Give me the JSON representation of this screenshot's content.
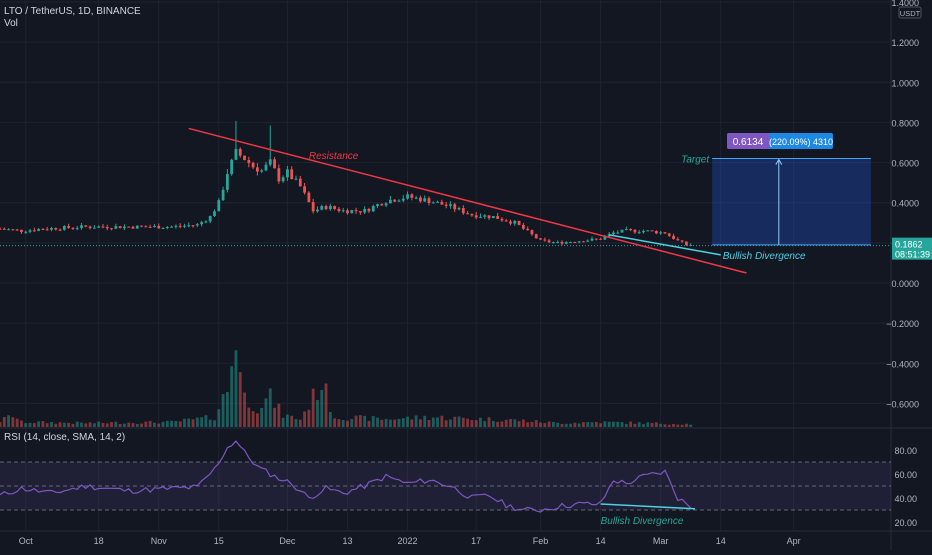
{
  "header": {
    "symbol_line": "LTO / TetherUS, 1D, BINANCE",
    "volume_label": "Vol",
    "rsi_label": "RSI (14, close, SMA, 14, 2)"
  },
  "price_scale": {
    "currency": "USDT",
    "ticks": [
      "1.4000",
      "1.2000",
      "1.0000",
      "0.8000",
      "0.6000",
      "0.4000",
      "0.2000",
      "0.0000",
      "−0.2000",
      "−0.4000",
      "−0.6000"
    ],
    "tick_values": [
      1.4,
      1.2,
      1.0,
      0.8,
      0.6,
      0.4,
      0.2,
      0.0,
      -0.2,
      -0.4,
      -0.6
    ],
    "last_price_label": "0.1862",
    "countdown_label": "08:51:39",
    "last_price": 0.1862
  },
  "rsi_scale": {
    "ticks": [
      "80.00",
      "60.00",
      "40.00",
      "20.00"
    ],
    "tick_values": [
      80,
      60,
      40,
      20
    ],
    "levels": [
      70,
      50,
      30
    ]
  },
  "time_axis": {
    "labels": [
      "Oct",
      "18",
      "Nov",
      "15",
      "Dec",
      "13",
      "2022",
      "17",
      "Feb",
      "14",
      "Mar",
      "14",
      "Apr"
    ],
    "label_days": [
      6,
      23,
      37,
      51,
      67,
      81,
      95,
      111,
      126,
      140,
      154,
      168,
      185
    ]
  },
  "annotations": {
    "resistance_label": "Resistance",
    "target_label": "Target",
    "bullish_divergence_label": "Bullish Divergence",
    "rsi_divergence_label": "Bullish Divergence",
    "target_price_label": "0.6134",
    "target_detail_label": "(220.09%) 4310"
  },
  "chart_data": {
    "type": "candlestick",
    "symbol": "LTO / TetherUS",
    "interval": "1D",
    "exchange": "BINANCE",
    "price_range": [
      -0.7,
      1.4
    ],
    "rsi_range": [
      20,
      90
    ],
    "resistance_line": {
      "start": [
        44,
        0.77
      ],
      "end": [
        174,
        0.05
      ]
    },
    "support_line": {
      "start": [
        142,
        0.24
      ],
      "end": [
        168,
        0.14
      ]
    },
    "target_box": {
      "day_start": 166,
      "day_end": 203,
      "entry_price": 0.19,
      "target_price": 0.62
    },
    "price_anchors": [
      [
        0,
        0.27
      ],
      [
        5,
        0.26
      ],
      [
        10,
        0.27
      ],
      [
        20,
        0.28
      ],
      [
        30,
        0.28
      ],
      [
        40,
        0.28
      ],
      [
        46,
        0.29
      ],
      [
        49,
        0.33
      ],
      [
        51,
        0.4
      ],
      [
        53,
        0.55
      ],
      [
        55,
        0.65
      ],
      [
        57,
        0.62
      ],
      [
        59,
        0.58
      ],
      [
        61,
        0.56
      ],
      [
        63,
        0.6
      ],
      [
        65,
        0.52
      ],
      [
        67,
        0.55
      ],
      [
        70,
        0.48
      ],
      [
        73,
        0.36
      ],
      [
        76,
        0.38
      ],
      [
        80,
        0.36
      ],
      [
        85,
        0.36
      ],
      [
        90,
        0.41
      ],
      [
        95,
        0.43
      ],
      [
        100,
        0.41
      ],
      [
        105,
        0.38
      ],
      [
        110,
        0.34
      ],
      [
        115,
        0.33
      ],
      [
        120,
        0.3
      ],
      [
        124,
        0.24
      ],
      [
        126,
        0.21
      ],
      [
        130,
        0.2
      ],
      [
        135,
        0.21
      ],
      [
        140,
        0.22
      ],
      [
        143,
        0.25
      ],
      [
        146,
        0.26
      ],
      [
        150,
        0.26
      ],
      [
        155,
        0.25
      ],
      [
        158,
        0.21
      ],
      [
        160,
        0.19
      ],
      [
        161,
        0.19
      ]
    ],
    "volume_anchors": [
      [
        0,
        0.06
      ],
      [
        3,
        0.12
      ],
      [
        5,
        0.05
      ],
      [
        20,
        0.04
      ],
      [
        40,
        0.05
      ],
      [
        50,
        0.1
      ],
      [
        53,
        0.38
      ],
      [
        54,
        0.65
      ],
      [
        55,
        1.0
      ],
      [
        56,
        0.55
      ],
      [
        57,
        0.3
      ],
      [
        60,
        0.2
      ],
      [
        63,
        0.3
      ],
      [
        66,
        0.12
      ],
      [
        70,
        0.08
      ],
      [
        75,
        0.45
      ],
      [
        78,
        0.1
      ],
      [
        90,
        0.08
      ],
      [
        100,
        0.1
      ],
      [
        120,
        0.07
      ],
      [
        130,
        0.04
      ],
      [
        140,
        0.05
      ],
      [
        160,
        0.03
      ]
    ],
    "rsi_anchors": [
      [
        0,
        42
      ],
      [
        5,
        48
      ],
      [
        12,
        44
      ],
      [
        20,
        50
      ],
      [
        30,
        46
      ],
      [
        40,
        48
      ],
      [
        46,
        49
      ],
      [
        50,
        64
      ],
      [
        53,
        82
      ],
      [
        55,
        88
      ],
      [
        57,
        78
      ],
      [
        60,
        66
      ],
      [
        64,
        58
      ],
      [
        68,
        52
      ],
      [
        72,
        40
      ],
      [
        76,
        48
      ],
      [
        80,
        44
      ],
      [
        85,
        50
      ],
      [
        90,
        58
      ],
      [
        95,
        52
      ],
      [
        100,
        55
      ],
      [
        105,
        50
      ],
      [
        110,
        40
      ],
      [
        114,
        42
      ],
      [
        118,
        34
      ],
      [
        122,
        30
      ],
      [
        126,
        30
      ],
      [
        130,
        33
      ],
      [
        135,
        35
      ],
      [
        140,
        35
      ],
      [
        143,
        55
      ],
      [
        146,
        52
      ],
      [
        150,
        58
      ],
      [
        155,
        62
      ],
      [
        158,
        40
      ],
      [
        161,
        33
      ]
    ],
    "rsi_divergence_line": {
      "start": [
        140,
        35
      ],
      "end": [
        162,
        31
      ]
    }
  }
}
